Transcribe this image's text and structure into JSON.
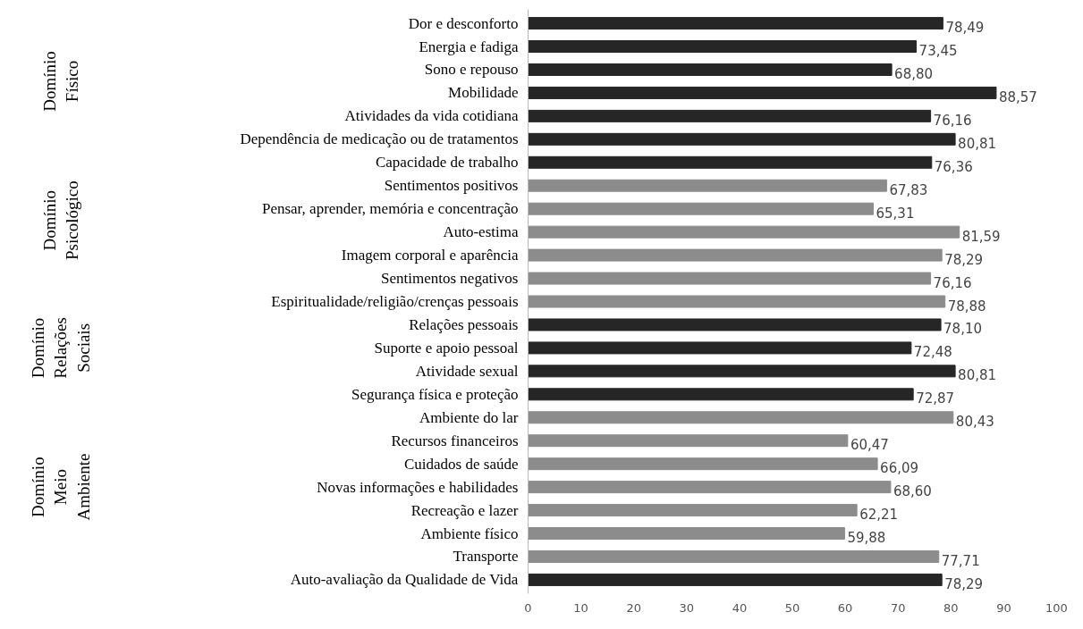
{
  "chart_data": {
    "type": "bar",
    "orientation": "horizontal",
    "categories": [
      "Dor e desconforto",
      "Energia e fadiga",
      "Sono e repouso",
      "Mobilidade",
      "Atividades da vida cotidiana",
      "Dependência de medicação ou de tratamentos",
      "Capacidade de trabalho",
      "Sentimentos positivos",
      "Pensar, aprender, memória e concentração",
      "Auto-estima",
      "Imagem corporal e aparência",
      "Sentimentos negativos",
      "Espiritualidade/religião/crenças pessoais",
      "Relações pessoais",
      "Suporte e apoio pessoal",
      "Atividade sexual",
      "Segurança física e proteção",
      "Ambiente do lar",
      "Recursos financeiros",
      "Cuidados de saúde",
      "Novas informações e habilidades",
      "Recreação e lazer",
      "Ambiente físico",
      "Transporte",
      "Auto-avaliação da Qualidade de Vida"
    ],
    "values": [
      78.49,
      73.45,
      68.8,
      88.57,
      76.16,
      80.81,
      76.36,
      67.83,
      65.31,
      81.59,
      78.29,
      76.16,
      78.88,
      78.1,
      72.48,
      80.81,
      72.87,
      80.43,
      60.47,
      66.09,
      68.6,
      62.21,
      59.88,
      77.71,
      78.29
    ],
    "value_labels": [
      "78,49",
      "73,45",
      "68,80",
      "88,57",
      "76,16",
      "80,81",
      "76,36",
      "67,83",
      "65,31",
      "81,59",
      "78,29",
      "76,16",
      "78,88",
      "78,10",
      "72,48",
      "80,81",
      "72,87",
      "80,43",
      "60,47",
      "66,09",
      "68,60",
      "62,21",
      "59,88",
      "77,71",
      "78,29"
    ],
    "colors": [
      "#262626",
      "#262626",
      "#262626",
      "#262626",
      "#262626",
      "#262626",
      "#262626",
      "#8c8c8c",
      "#8c8c8c",
      "#8c8c8c",
      "#8c8c8c",
      "#8c8c8c",
      "#8c8c8c",
      "#262626",
      "#262626",
      "#262626",
      "#262626",
      "#8c8c8c",
      "#8c8c8c",
      "#8c8c8c",
      "#8c8c8c",
      "#8c8c8c",
      "#8c8c8c",
      "#8c8c8c",
      "#262626"
    ],
    "xlim": [
      0,
      100
    ],
    "xticks": [
      0,
      10,
      20,
      30,
      40,
      50,
      60,
      70,
      80,
      90,
      100
    ],
    "grid": false,
    "annotations": [
      "Domínio Físico",
      "Domínio Psicológico",
      "Domínio Relações Sociais",
      "Domínio Meio Ambiente"
    ]
  }
}
